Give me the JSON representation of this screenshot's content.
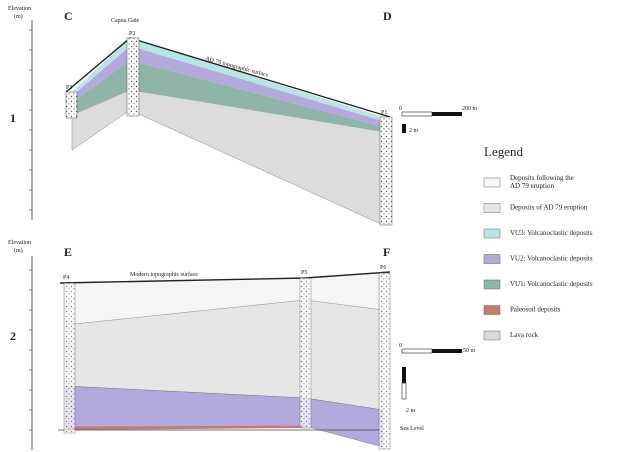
{
  "panel_1": {
    "axis_label_lines": [
      "Elevation",
      "(m)"
    ],
    "number": "1",
    "left_letter": "C",
    "right_letter": "D",
    "gate_label": "Capua Gate",
    "profiles": [
      "P3",
      "P2",
      "P1"
    ],
    "surface_label": "AD 79 topographic surface",
    "scale_h": [
      "0",
      "200 m"
    ],
    "scale_v": "2 m"
  },
  "panel_2": {
    "axis_label_lines": [
      "Elevation",
      "(m)"
    ],
    "number": "2",
    "left_letter": "E",
    "right_letter": "F",
    "profiles": [
      "P4",
      "P5",
      "P6"
    ],
    "surface_label": "Modern topographic surface",
    "scale_h": [
      "0",
      "50 m"
    ],
    "scale_v": "2 m",
    "sea_level": "Sea Level"
  },
  "legend": {
    "title": "Legend",
    "items": [
      {
        "label_lines": [
          "Deposits following the",
          "AD 79 eruption"
        ]
      },
      {
        "label_lines": [
          "Deposits of AD 79 eruption"
        ]
      },
      {
        "label_lines": [
          "VU3: Volcanoclastic deposits"
        ]
      },
      {
        "label_lines": [
          "VU2: Volcanoclastic deposits"
        ]
      },
      {
        "label_lines": [
          "VU1: Volcanoclastic deposits"
        ]
      },
      {
        "label_lines": [
          "Paleosoil deposits"
        ]
      },
      {
        "label_lines": [
          "Lava rock"
        ]
      }
    ]
  }
}
